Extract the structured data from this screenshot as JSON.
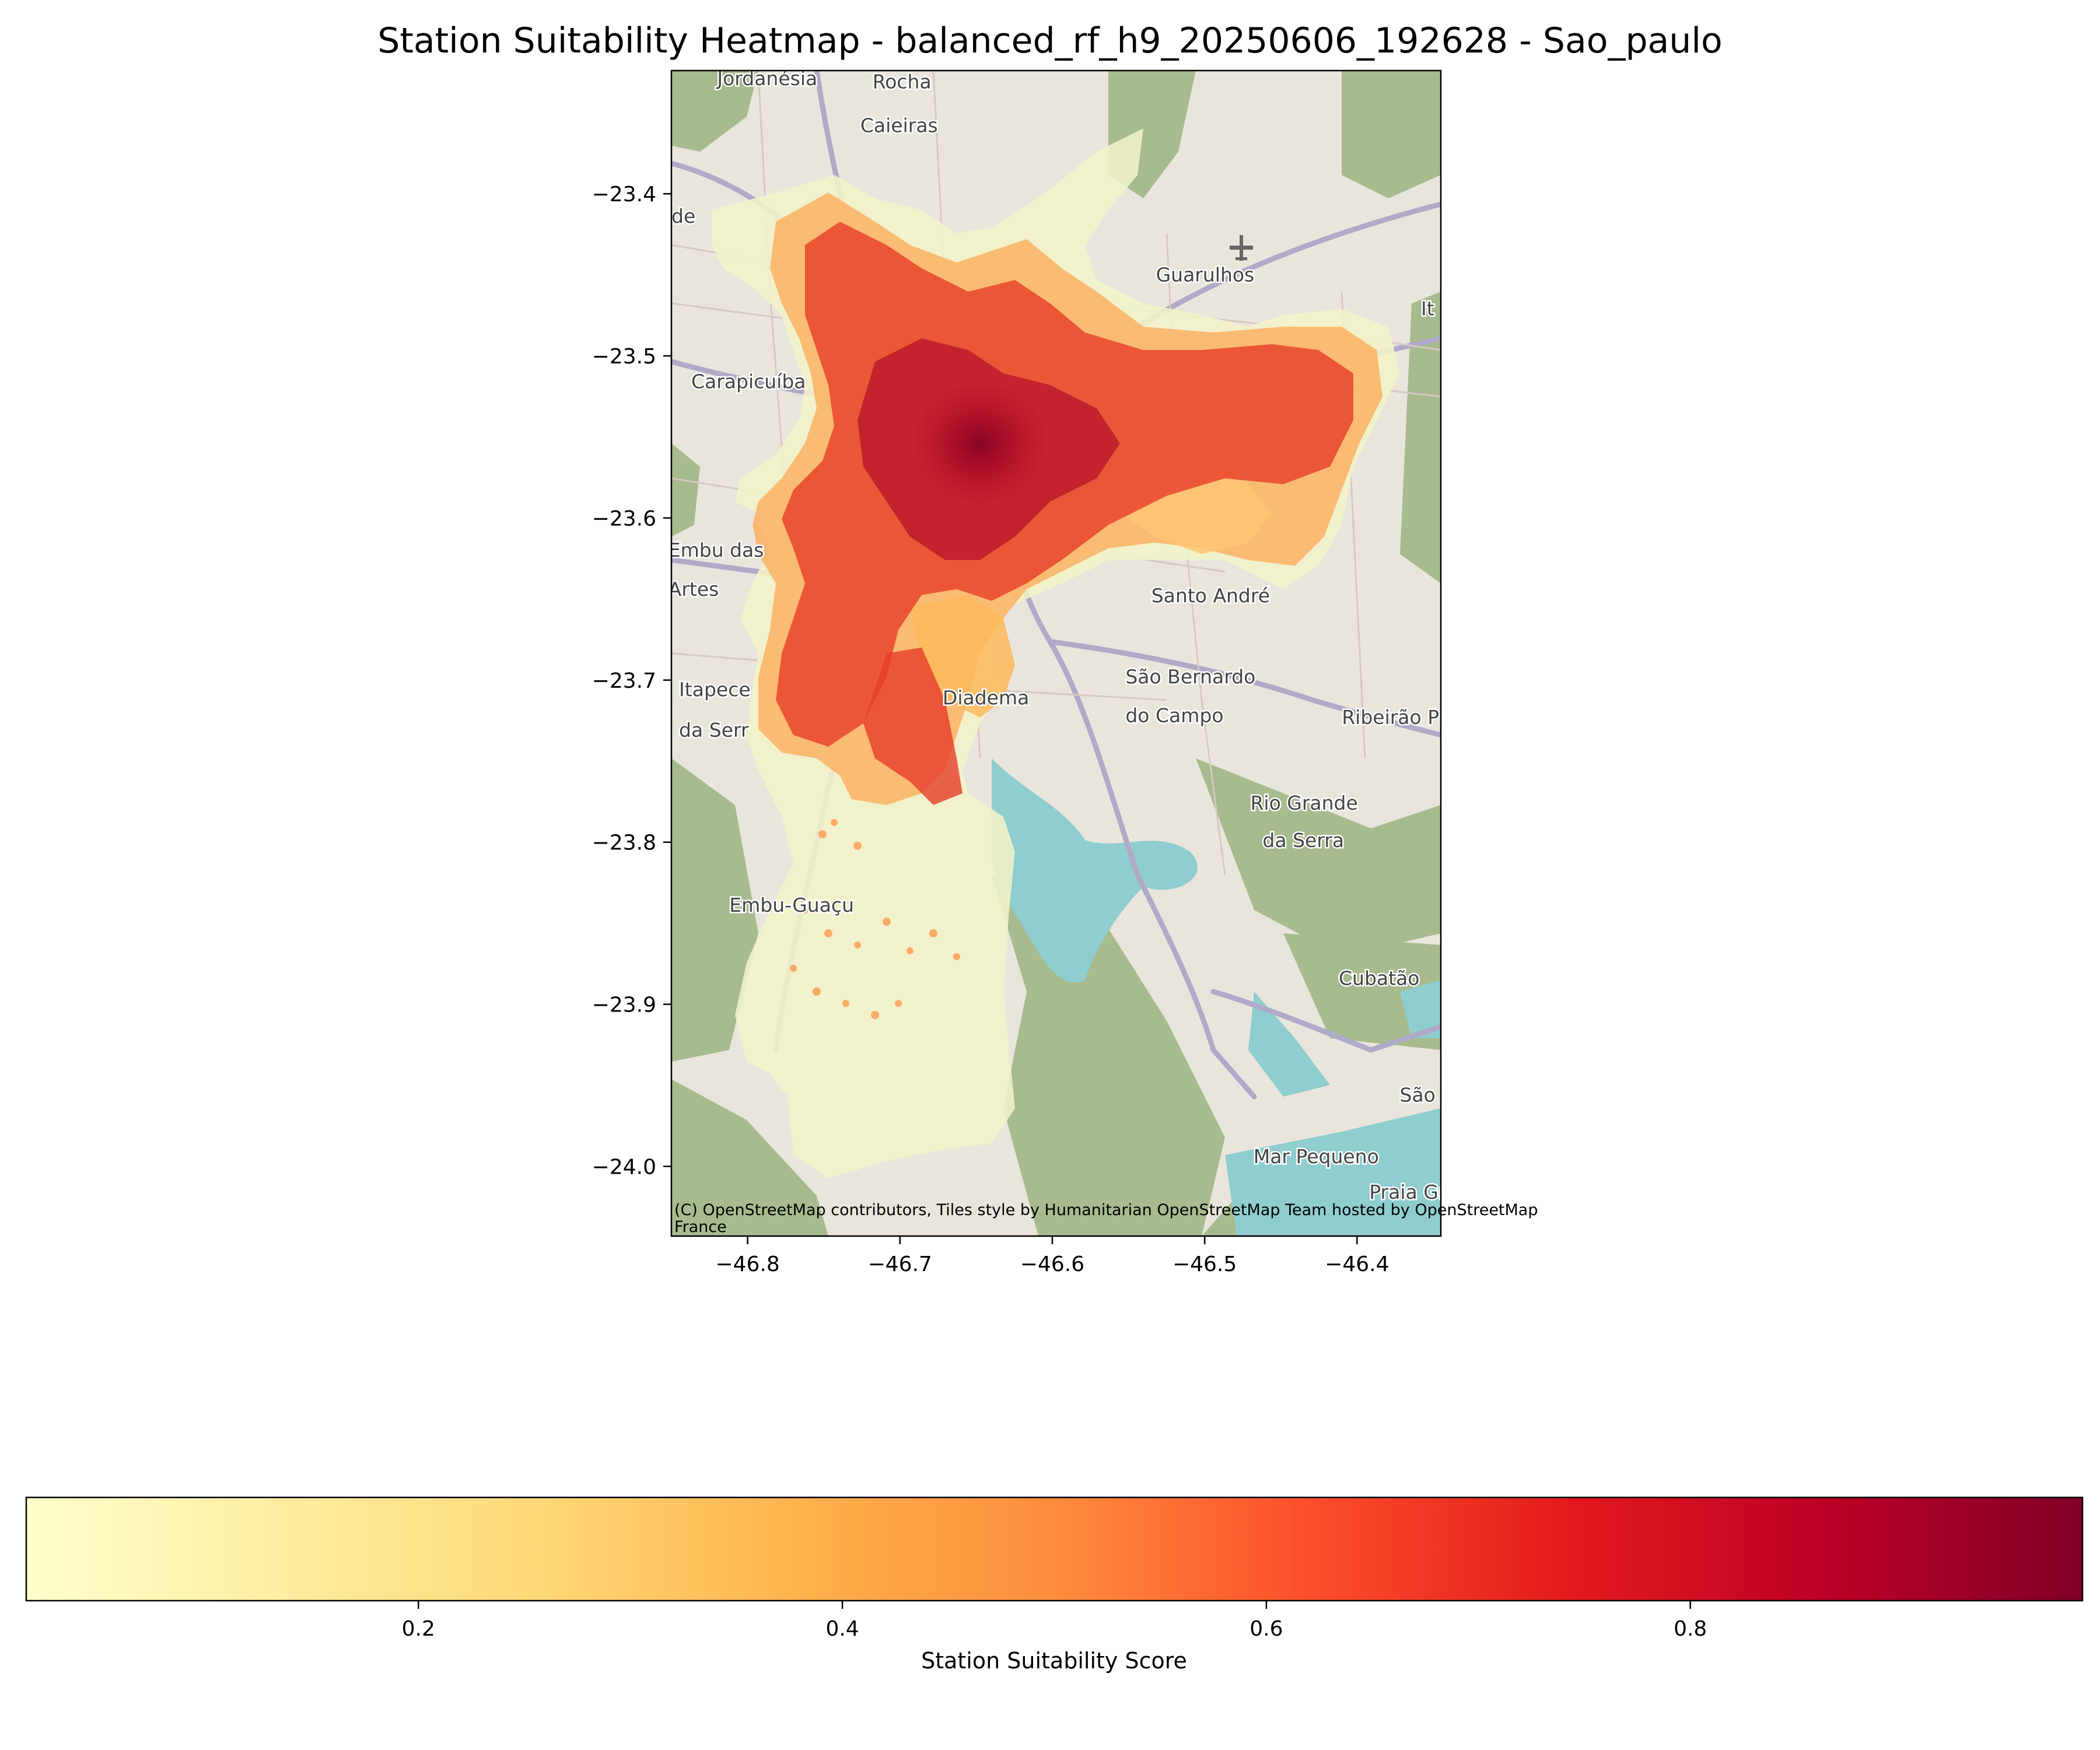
{
  "title": "Station Suitability Heatmap - balanced_rf_h9_20250606_192628 - Sao_paulo",
  "map": {
    "lon_range": [
      -46.85,
      -46.345
    ],
    "lat_range": [
      -24.043,
      -23.324
    ],
    "x_ticks": [
      {
        "value": -46.8,
        "label": "−46.8"
      },
      {
        "value": -46.7,
        "label": "−46.7"
      },
      {
        "value": -46.6,
        "label": "−46.6"
      },
      {
        "value": -46.5,
        "label": "−46.5"
      },
      {
        "value": -46.4,
        "label": "−46.4"
      }
    ],
    "y_ticks": [
      {
        "value": -23.4,
        "label": "−23.4"
      },
      {
        "value": -23.5,
        "label": "−23.5"
      },
      {
        "value": -23.6,
        "label": "−23.6"
      },
      {
        "value": -23.7,
        "label": "−23.7"
      },
      {
        "value": -23.8,
        "label": "−23.8"
      },
      {
        "value": -23.9,
        "label": "−23.9"
      },
      {
        "value": -24.0,
        "label": "−24.0"
      }
    ],
    "attribution_line1": "(C) OpenStreetMap contributors, Tiles style by Humanitarian OpenStreetMap Team hosted by OpenStreetMap",
    "attribution_line2": "France",
    "places": [
      {
        "name": "Jordanésia",
        "lon": -46.82,
        "lat": -23.333
      },
      {
        "name": "Rocha",
        "lon": -46.718,
        "lat": -23.335
      },
      {
        "name": "Caieiras",
        "lon": -46.726,
        "lat": -23.362
      },
      {
        "name": "Guarulhos",
        "lon": -46.532,
        "lat": -23.454
      },
      {
        "name": "Carapicuíba",
        "lon": -46.837,
        "lat": -23.52
      },
      {
        "name": "de",
        "lon": -46.85,
        "lat": -23.418
      },
      {
        "name": "It",
        "lon": -46.358,
        "lat": -23.475
      },
      {
        "name": "Embu das",
        "lon": -46.852,
        "lat": -23.624
      },
      {
        "name": "Artes",
        "lon": -46.852,
        "lat": -23.648
      },
      {
        "name": "Santo André",
        "lon": -46.535,
        "lat": -23.652
      },
      {
        "name": "São Bernardo",
        "lon": -46.552,
        "lat": -23.702
      },
      {
        "name": "do Campo",
        "lon": -46.552,
        "lat": -23.726
      },
      {
        "name": "Itapece",
        "lon": -46.845,
        "lat": -23.71
      },
      {
        "name": "da Serr",
        "lon": -46.845,
        "lat": -23.735
      },
      {
        "name": "Ribeirão P",
        "lon": -46.41,
        "lat": -23.727
      },
      {
        "name": "Diadema",
        "lon": -46.672,
        "lat": -23.715
      },
      {
        "name": "Rio Grande",
        "lon": -46.47,
        "lat": -23.78
      },
      {
        "name": "da Serra",
        "lon": -46.462,
        "lat": -23.803
      },
      {
        "name": "Embu-Guaçu",
        "lon": -46.812,
        "lat": -23.843
      },
      {
        "name": "Cubatão",
        "lon": -46.412,
        "lat": -23.888
      },
      {
        "name": "São Vi",
        "lon": -46.372,
        "lat": -23.96
      },
      {
        "name": "Mar Pequeno",
        "lon": -46.468,
        "lat": -23.998
      },
      {
        "name": "Praia Gran",
        "lon": -46.392,
        "lat": -24.02
      }
    ]
  },
  "colorbar": {
    "label": "Station Suitability Score",
    "colormap": "YlOrRd",
    "range": [
      0.015,
      0.985
    ],
    "ticks": [
      {
        "value": 0.2,
        "label": "0.2"
      },
      {
        "value": 0.4,
        "label": "0.4"
      },
      {
        "value": 0.6,
        "label": "0.6"
      },
      {
        "value": 0.8,
        "label": "0.8"
      }
    ],
    "stops": [
      "#ffffcc",
      "#ffeda0",
      "#fed976",
      "#feb24c",
      "#fd8d3c",
      "#fc4e2a",
      "#e31a1c",
      "#bd0026",
      "#800026"
    ]
  },
  "colors": {
    "map_land": "#e9e5dc",
    "forest": "#a8bb8e",
    "water": "#8fcdcf",
    "road": "#b1a9c8"
  }
}
